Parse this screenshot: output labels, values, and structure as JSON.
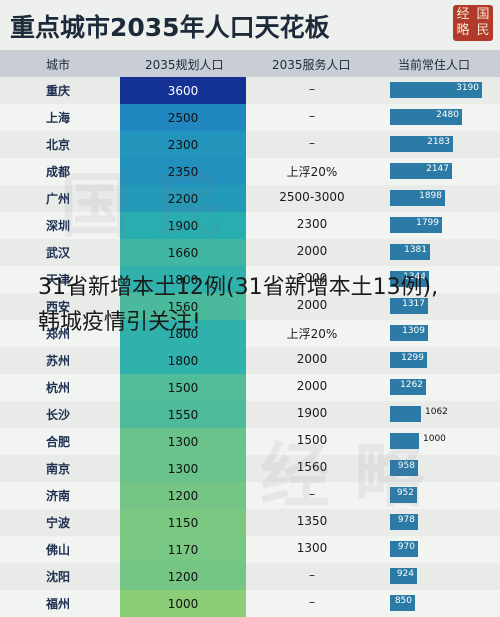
{
  "title": "重点城市2035年人口天花板",
  "seal_chars": [
    "经",
    "国",
    "略",
    "民"
  ],
  "colors": {
    "bar": "#2b7ba6",
    "header_bg": "#c9ced6"
  },
  "overlay_text": {
    "line1": "31省新增本土12例(31省新增本土13例),",
    "line2": "韩城疫情引关注!"
  },
  "chart_data": {
    "type": "table",
    "columns": [
      "城市",
      "2035规划人口",
      "2035服务人口",
      "当前常住人口"
    ],
    "rows": [
      {
        "city": "重庆",
        "plan": "3600",
        "plan_value": 3600,
        "service": "–",
        "current": "3190",
        "current_value": 3190
      },
      {
        "city": "上海",
        "plan": "2500",
        "plan_value": 2500,
        "service": "–",
        "current": "2480",
        "current_value": 2480
      },
      {
        "city": "北京",
        "plan": "2300",
        "plan_value": 2300,
        "service": "–",
        "current": "2183",
        "current_value": 2183
      },
      {
        "city": "成都",
        "plan": "2350",
        "plan_value": 2350,
        "service": "上浮20%",
        "current": "2147",
        "current_value": 2147
      },
      {
        "city": "广州",
        "plan": "2200",
        "plan_value": 2200,
        "service": "2500-3000",
        "current": "1898",
        "current_value": 1898
      },
      {
        "city": "深圳",
        "plan": "1900",
        "plan_value": 1900,
        "service": "2300",
        "current": "1799",
        "current_value": 1799
      },
      {
        "city": "武汉",
        "plan": "1660",
        "plan_value": 1660,
        "service": "2000",
        "current": "1381",
        "current_value": 1381
      },
      {
        "city": "天津",
        "plan": "1800",
        "plan_value": 1800,
        "service": "2000",
        "current": "1344",
        "current_value": 1344
      },
      {
        "city": "西安",
        "plan": "1560",
        "plan_value": 1560,
        "service": "2000",
        "current": "1317",
        "current_value": 1317
      },
      {
        "city": "郑州",
        "plan": "1800",
        "plan_value": 1800,
        "service": "上浮20%",
        "current": "1309",
        "current_value": 1309
      },
      {
        "city": "苏州",
        "plan": "1800",
        "plan_value": 1800,
        "service": "2000",
        "current": "1299",
        "current_value": 1299
      },
      {
        "city": "杭州",
        "plan": "1500",
        "plan_value": 1500,
        "service": "2000",
        "current": "1262",
        "current_value": 1262
      },
      {
        "city": "长沙",
        "plan": "1550",
        "plan_value": 1550,
        "service": "1900",
        "current": "1062",
        "current_value": 1062
      },
      {
        "city": "合肥",
        "plan": "1300",
        "plan_value": 1300,
        "service": "1500",
        "current": "1000",
        "current_value": 1000
      },
      {
        "city": "南京",
        "plan": "1300",
        "plan_value": 1300,
        "service": "1560",
        "current": "958",
        "current_value": 958
      },
      {
        "city": "济南",
        "plan": "1200",
        "plan_value": 1200,
        "service": "–",
        "current": "952",
        "current_value": 952
      },
      {
        "city": "宁波",
        "plan": "1150",
        "plan_value": 1150,
        "service": "1350",
        "current": "978",
        "current_value": 978
      },
      {
        "city": "佛山",
        "plan": "1170",
        "plan_value": 1170,
        "service": "1300",
        "current": "970",
        "current_value": 970
      },
      {
        "city": "沈阳",
        "plan": "1200",
        "plan_value": 1200,
        "service": "–",
        "current": "924",
        "current_value": 924
      },
      {
        "city": "福州",
        "plan": "1000",
        "plan_value": 1000,
        "service": "–",
        "current": "850",
        "current_value": 850
      }
    ]
  }
}
